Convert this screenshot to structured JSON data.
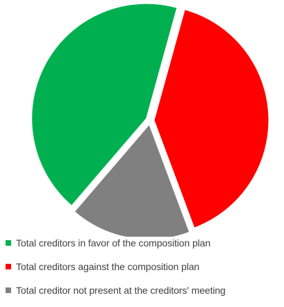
{
  "chart_data": {
    "type": "pie",
    "title": "",
    "categories": [
      "Total creditors in favor of the composition plan",
      "Total creditors against the composition plan",
      "Total creditor not present at the creditors' meeting"
    ],
    "values": [
      43,
      40,
      17
    ],
    "colors": [
      "#00B050",
      "#FF0000",
      "#808080"
    ],
    "exploded": true,
    "legend": "bottom-left"
  }
}
